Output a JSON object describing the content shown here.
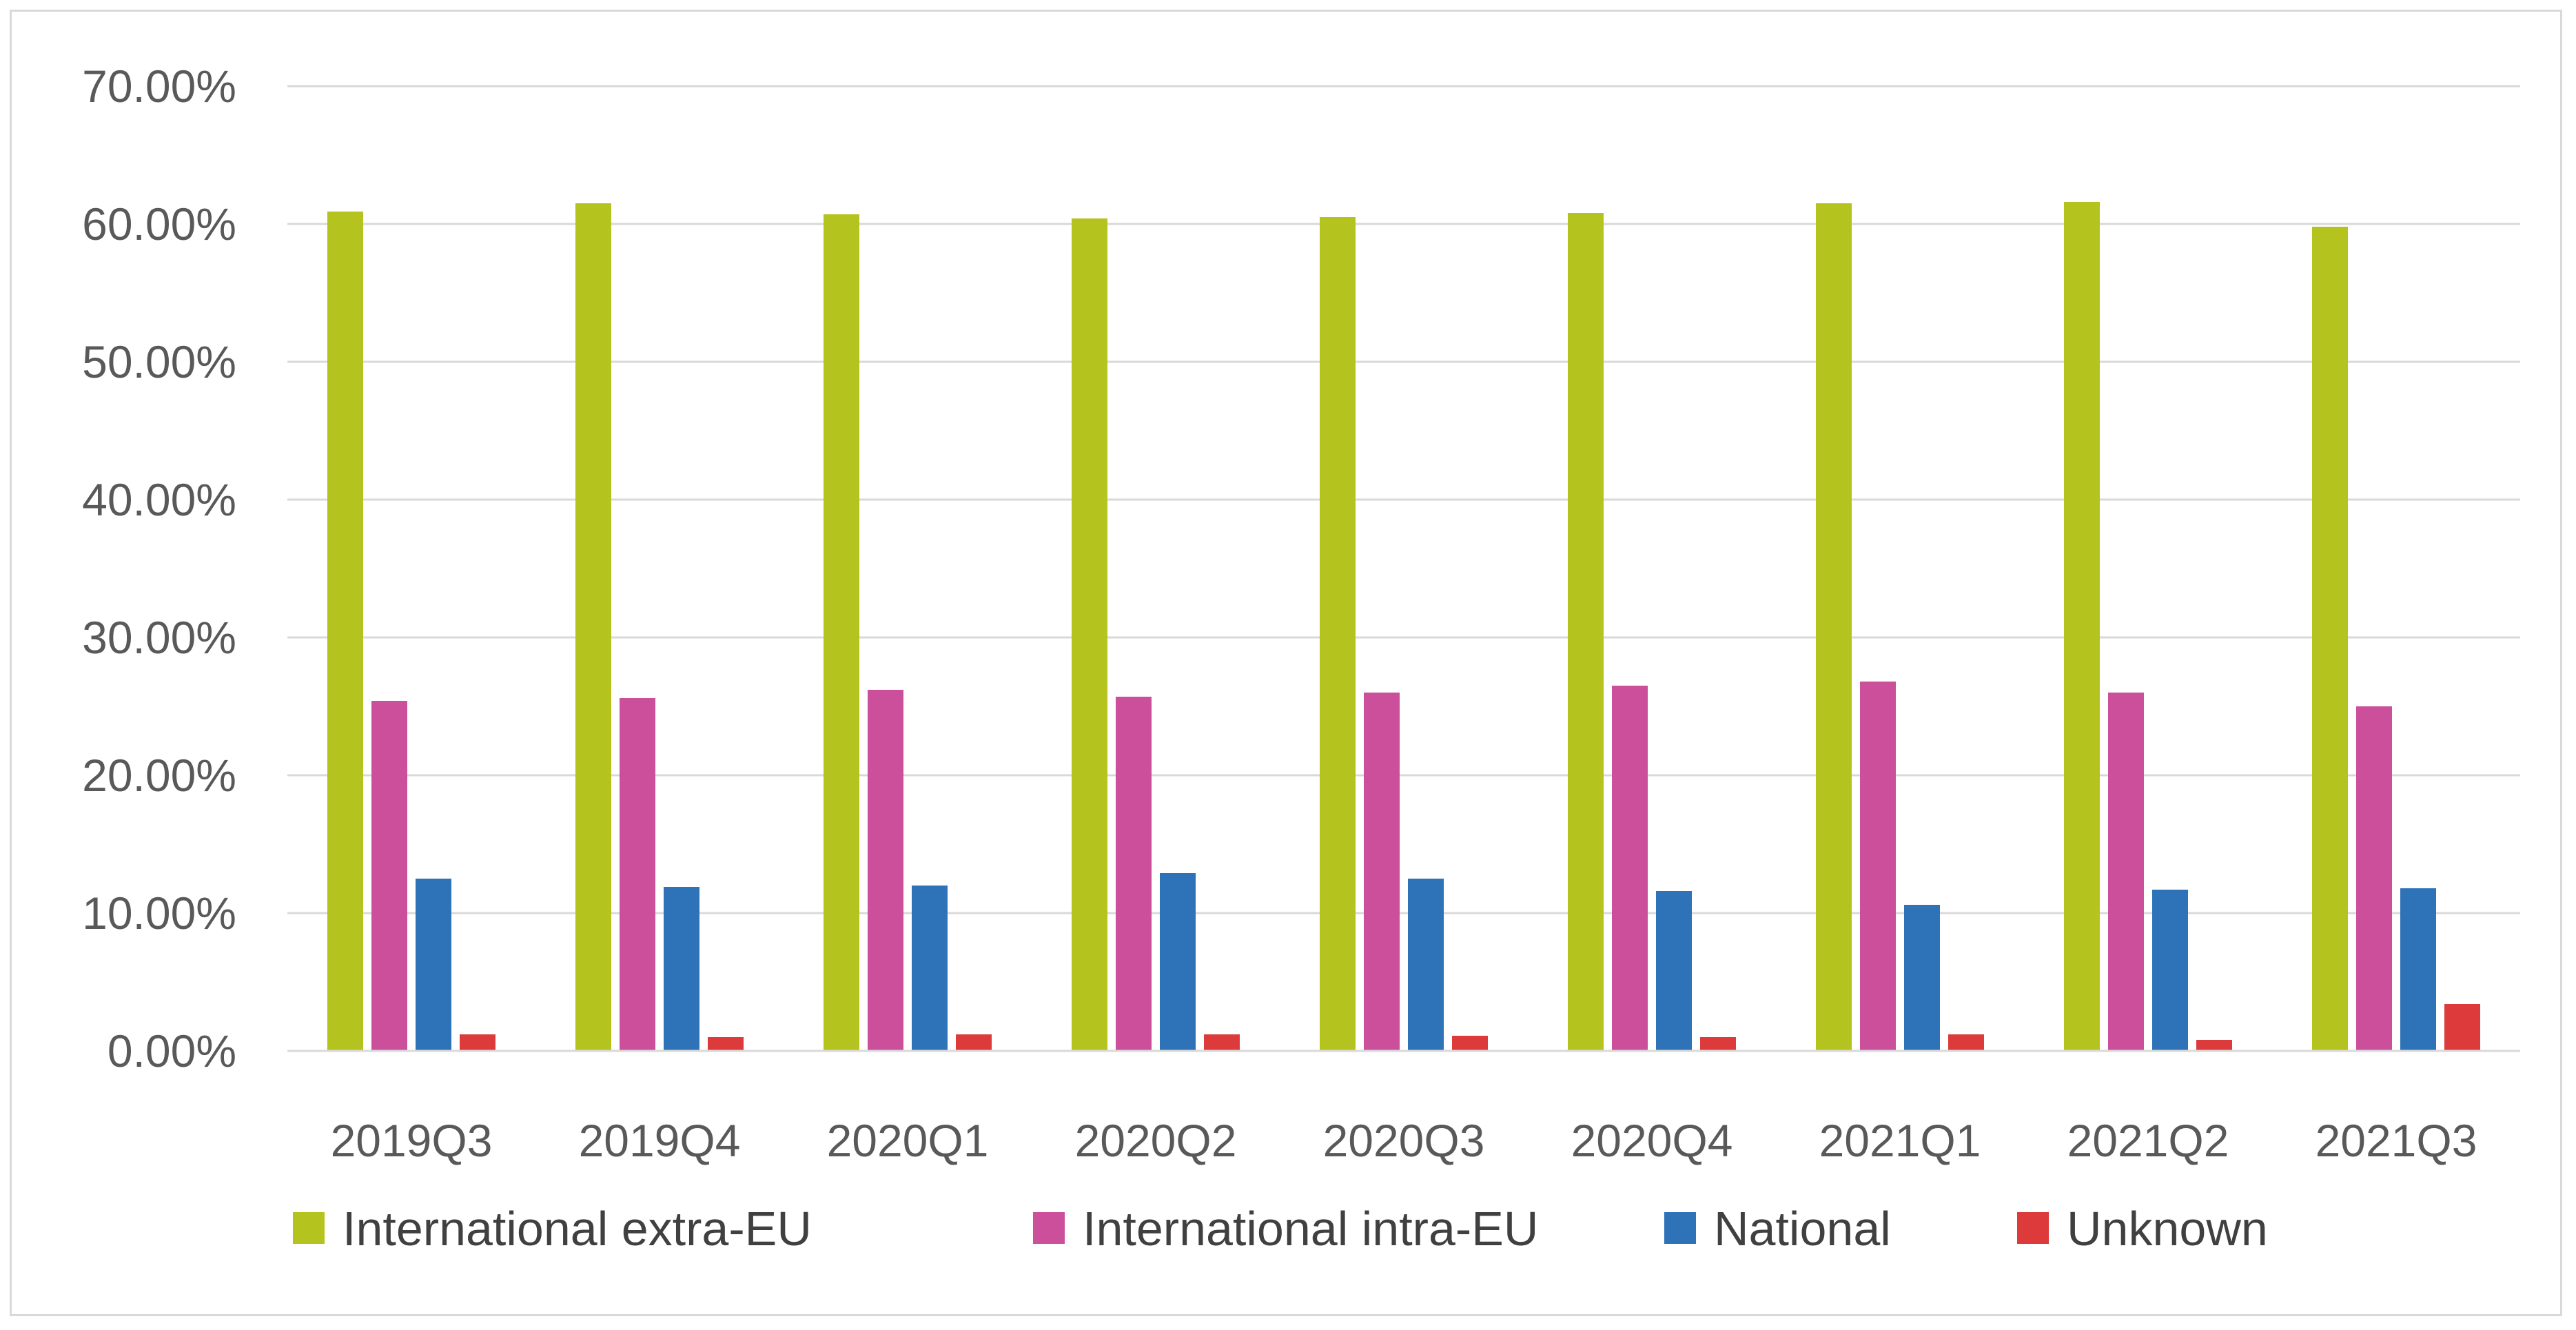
{
  "chart_data": {
    "type": "bar",
    "title": "",
    "xlabel": "",
    "ylabel": "",
    "ylim": [
      0,
      70
    ],
    "y_ticks": [
      0,
      10,
      20,
      30,
      40,
      50,
      60,
      70
    ],
    "y_tick_labels": [
      "0.00%",
      "10.00%",
      "20.00%",
      "30.00%",
      "40.00%",
      "50.00%",
      "60.00%",
      "70.00%"
    ],
    "grid": true,
    "legend_position": "bottom",
    "categories": [
      "2019Q3",
      "2019Q4",
      "2020Q1",
      "2020Q2",
      "2020Q3",
      "2020Q4",
      "2021Q1",
      "2021Q2",
      "2021Q3"
    ],
    "series": [
      {
        "name": "International extra-EU",
        "color": "#b5c31f",
        "values": [
          60.9,
          61.5,
          60.7,
          60.4,
          60.5,
          60.8,
          61.5,
          61.6,
          59.8
        ]
      },
      {
        "name": "International intra-EU",
        "color": "#cc4f9c",
        "values": [
          25.4,
          25.6,
          26.2,
          25.7,
          26.0,
          26.5,
          26.8,
          26.0,
          25.0
        ]
      },
      {
        "name": "National",
        "color": "#2e72b8",
        "values": [
          12.5,
          11.9,
          12.0,
          12.9,
          12.5,
          11.6,
          10.6,
          11.7,
          11.8
        ]
      },
      {
        "name": "Unknown",
        "color": "#dd3b3b",
        "values": [
          1.2,
          1.0,
          1.2,
          1.2,
          1.1,
          1.0,
          1.2,
          0.8,
          3.4
        ]
      }
    ]
  }
}
